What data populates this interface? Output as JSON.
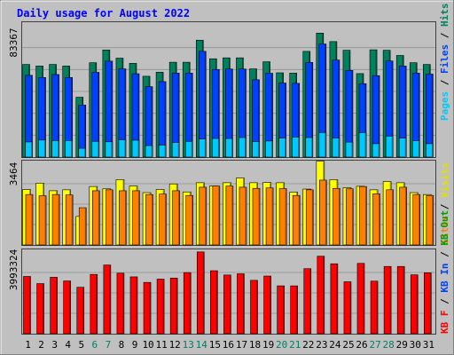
{
  "chart_data": [
    {
      "type": "bar",
      "title": "Daily usage for August 2022",
      "categories": [
        "1",
        "2",
        "3",
        "4",
        "5",
        "6",
        "7",
        "8",
        "9",
        "10",
        "11",
        "12",
        "13",
        "14",
        "15",
        "16",
        "17",
        "18",
        "19",
        "20",
        "21",
        "22",
        "23",
        "24",
        "25",
        "26",
        "27",
        "28",
        "29",
        "30",
        "31"
      ],
      "weekend_days": [
        6,
        7,
        13,
        14,
        20,
        21,
        27,
        28
      ],
      "y_tick_label": "83367",
      "ylim": [
        0,
        83367
      ],
      "series": [
        {
          "name": "Hits",
          "color": "#00805c",
          "values": [
            58800,
            57800,
            58800,
            57800,
            38000,
            59900,
            68000,
            62800,
            59500,
            51300,
            53900,
            60200,
            60200,
            74200,
            62400,
            63000,
            63000,
            56000,
            60500,
            53500,
            53300,
            67100,
            78700,
            73300,
            67800,
            53000,
            68100,
            67800,
            64500,
            59900,
            58800
          ]
        },
        {
          "name": "Files",
          "color": "#0040ff",
          "values": [
            51900,
            50500,
            52400,
            50500,
            33000,
            53800,
            60900,
            56000,
            52900,
            44700,
            47900,
            53300,
            53300,
            67100,
            55600,
            55900,
            55900,
            49100,
            53200,
            47000,
            46800,
            60100,
            71800,
            61600,
            55000,
            46600,
            51700,
            61000,
            57800,
            53300,
            52700
          ]
        },
        {
          "name": "Pages",
          "color": "#00c8ff",
          "values": [
            9600,
            10800,
            10500,
            10500,
            5600,
            10000,
            9700,
            11000,
            10700,
            7300,
            7600,
            9300,
            10000,
            11500,
            11800,
            11800,
            12400,
            9900,
            10200,
            12100,
            12700,
            12400,
            15600,
            12100,
            9500,
            15600,
            8500,
            13300,
            12100,
            10400,
            8500
          ]
        }
      ]
    },
    {
      "type": "bar",
      "y_tick_label": "3464",
      "ylim": [
        0,
        3464
      ],
      "series": [
        {
          "name": "Visits",
          "color": "#ffff00",
          "values": [
            2350,
            2620,
            2300,
            2340,
            1210,
            2480,
            2380,
            2770,
            2500,
            2220,
            2350,
            2590,
            2250,
            2640,
            2500,
            2640,
            2840,
            2640,
            2650,
            2640,
            2240,
            2370,
            3550,
            2770,
            2430,
            2490,
            2340,
            2690,
            2640,
            2220,
            2140
          ]
        },
        {
          "name": "Sites",
          "color": "#ff8000",
          "values": [
            2140,
            2090,
            2140,
            2120,
            1580,
            2300,
            2340,
            2300,
            2300,
            2140,
            2160,
            2300,
            2100,
            2450,
            2500,
            2500,
            2450,
            2400,
            2420,
            2390,
            2100,
            2340,
            2750,
            2400,
            2380,
            2480,
            2170,
            2340,
            2450,
            2140,
            2100
          ]
        }
      ]
    },
    {
      "type": "bar",
      "y_tick_label": "3993324",
      "ylim": [
        0,
        3993324
      ],
      "series": [
        {
          "name": "KBytes In",
          "color": "#00a000",
          "values": []
        },
        {
          "name": "KBytes Out",
          "color": "#00a000",
          "values": []
        },
        {
          "name": "KBytes F",
          "color": "#ff0000",
          "values": [
            2800000,
            2450000,
            2760000,
            2580000,
            2270000,
            2900000,
            3360000,
            2960000,
            2780000,
            2510000,
            2670000,
            2720000,
            2990000,
            4000000,
            3080000,
            2870000,
            2930000,
            2610000,
            2820000,
            2340000,
            2340000,
            3180000,
            3790000,
            3420000,
            2540000,
            3440000,
            2570000,
            3290000,
            3290000,
            2880000,
            2980000
          ]
        }
      ]
    }
  ],
  "legend_labels": {
    "panel1": [
      "Pages",
      " / ",
      "Files",
      " / ",
      "Hits"
    ],
    "panel2": [
      "Sites",
      " / ",
      "Visits"
    ],
    "panel3": [
      "KB F",
      " / ",
      "KB In",
      " / ",
      "KB Out"
    ]
  },
  "colors": {
    "background": "#c0c0c0",
    "plot_bg": "#c0c0c0",
    "title": "#0000ff",
    "weekday_label": "#000000",
    "weekend_label": "#00805c",
    "legend_sep": "#000000"
  }
}
